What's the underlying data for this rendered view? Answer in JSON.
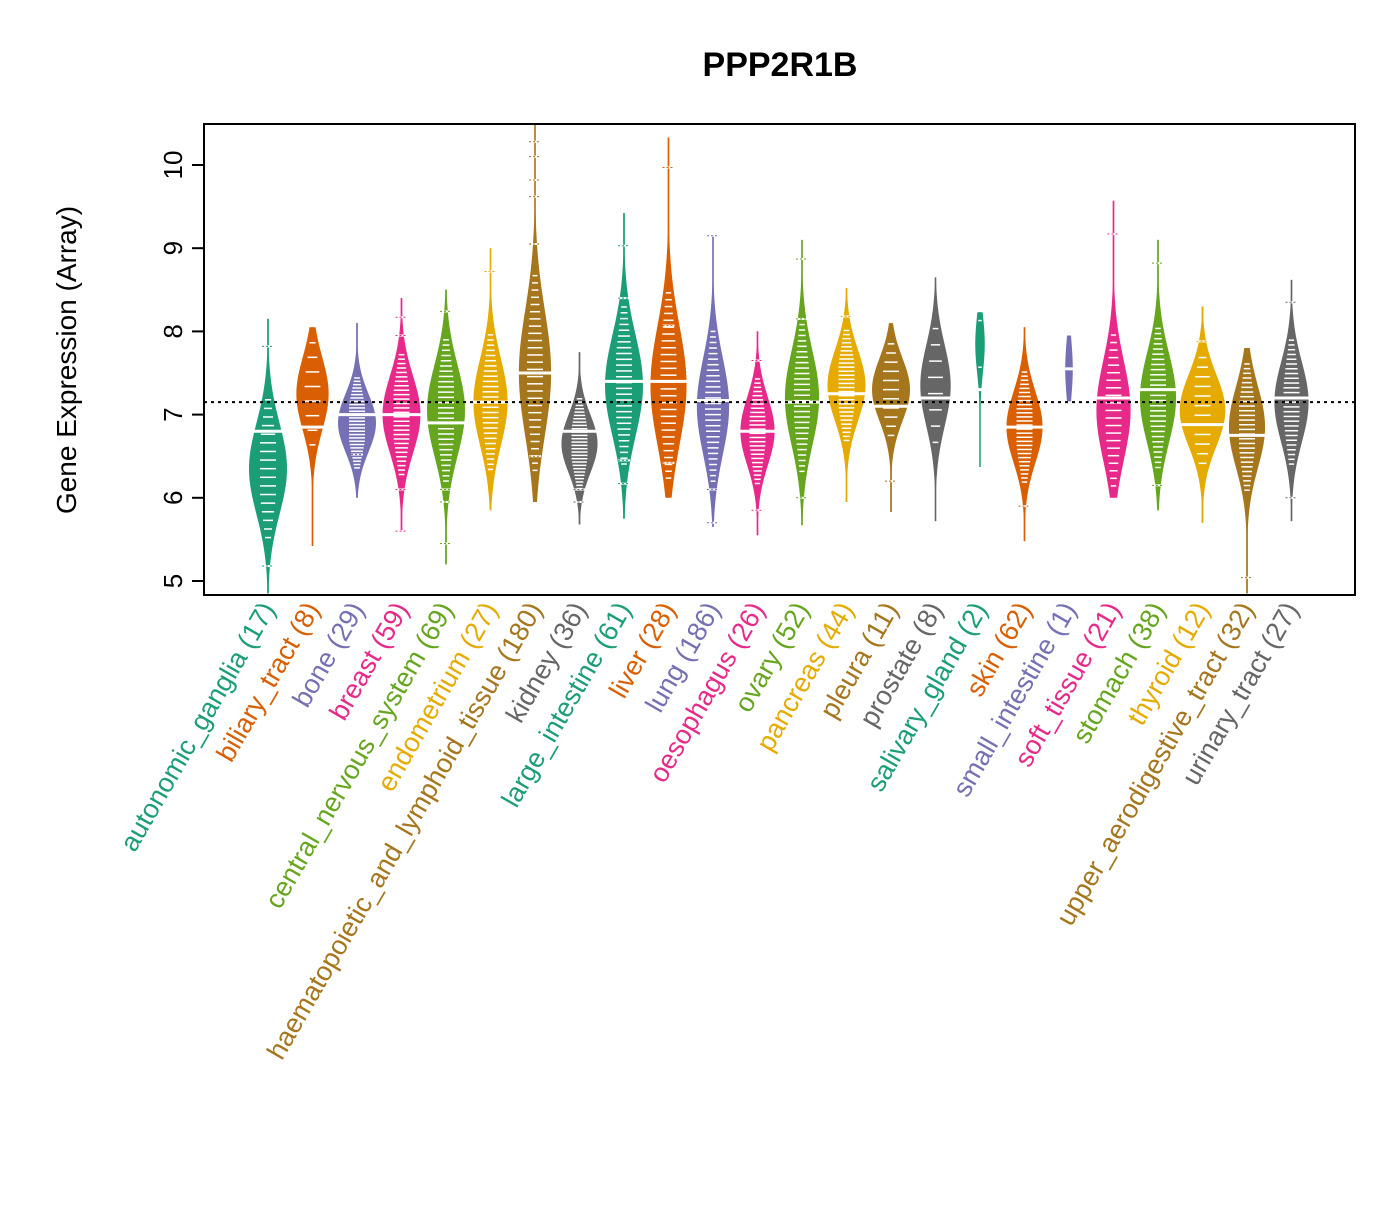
{
  "chart_data": {
    "type": "violin",
    "title": "PPP2R1B",
    "xlabel": "",
    "ylabel": "Gene Expression (Array)",
    "ylim": [
      4.85,
      10.5
    ],
    "yticks": [
      5,
      6,
      7,
      8,
      9,
      10
    ],
    "reference_line": 7.15,
    "grid": false,
    "legend": "none",
    "categories": [
      {
        "name": "autonomic_ganglia",
        "n": 17,
        "color": "#1B9E77",
        "min": 4.85,
        "max": 8.15,
        "median": 6.8,
        "mode": 6.35,
        "width": 1.0,
        "outliers": [
          5.18,
          7.82
        ]
      },
      {
        "name": "biliary_tract",
        "n": 8,
        "color": "#D95F02",
        "min": 5.42,
        "max": 8.05,
        "median": 6.85,
        "mode": 7.25,
        "width": 0.85,
        "outliers": []
      },
      {
        "name": "bone",
        "n": 29,
        "color": "#7570B3",
        "min": 6.0,
        "max": 8.1,
        "median": 7.0,
        "mode": 6.9,
        "width": 1.0,
        "outliers": [
          6.52
        ]
      },
      {
        "name": "breast",
        "n": 59,
        "color": "#E7298A",
        "min": 5.6,
        "max": 8.4,
        "median": 7.0,
        "mode": 7.0,
        "width": 1.0,
        "outliers": [
          5.6,
          6.1,
          8.17,
          7.95
        ]
      },
      {
        "name": "central_nervous_system",
        "n": 69,
        "color": "#66A61E",
        "min": 5.2,
        "max": 8.5,
        "median": 6.9,
        "mode": 7.05,
        "width": 1.0,
        "outliers": [
          5.45,
          5.95,
          6.1,
          8.24
        ]
      },
      {
        "name": "endometrium",
        "n": 27,
        "color": "#E6AB02",
        "min": 5.85,
        "max": 9.0,
        "median": 7.15,
        "mode": 7.15,
        "width": 0.9,
        "outliers": [
          8.72
        ]
      },
      {
        "name": "haematopoietic_and_lymphoid_tissue",
        "n": 180,
        "color": "#A6761D",
        "min": 5.95,
        "max": 10.5,
        "median": 7.5,
        "mode": 7.5,
        "width": 0.85,
        "outliers": [
          10.28,
          10.1,
          9.82,
          9.62,
          9.05,
          6.5
        ]
      },
      {
        "name": "kidney",
        "n": 36,
        "color": "#666666",
        "min": 5.68,
        "max": 7.75,
        "median": 6.8,
        "mode": 6.65,
        "width": 0.95,
        "outliers": [
          5.95,
          6.1
        ]
      },
      {
        "name": "large_intestine",
        "n": 61,
        "color": "#1B9E77",
        "min": 5.75,
        "max": 9.42,
        "median": 7.4,
        "mode": 7.35,
        "width": 1.0,
        "outliers": [
          9.03,
          8.4,
          6.45,
          6.17
        ]
      },
      {
        "name": "liver",
        "n": 28,
        "color": "#D95F02",
        "min": 6.0,
        "max": 10.33,
        "median": 7.4,
        "mode": 7.35,
        "width": 0.95,
        "outliers": [
          9.97,
          8.07,
          6.42
        ]
      },
      {
        "name": "lung",
        "n": 186,
        "color": "#7570B3",
        "min": 5.65,
        "max": 9.15,
        "median": 7.17,
        "mode": 7.1,
        "width": 0.85,
        "outliers": [
          9.15,
          5.7,
          6.1
        ]
      },
      {
        "name": "oesophagus",
        "n": 26,
        "color": "#E7298A",
        "min": 5.55,
        "max": 8.0,
        "median": 6.8,
        "mode": 6.8,
        "width": 0.9,
        "outliers": [
          5.85,
          7.65
        ]
      },
      {
        "name": "ovary",
        "n": 52,
        "color": "#66A61E",
        "min": 5.67,
        "max": 9.1,
        "median": 7.15,
        "mode": 7.2,
        "width": 0.9,
        "outliers": [
          8.87,
          8.15,
          6.0
        ]
      },
      {
        "name": "pancreas",
        "n": 44,
        "color": "#E6AB02",
        "min": 5.95,
        "max": 8.52,
        "median": 7.25,
        "mode": 7.35,
        "width": 1.0,
        "outliers": [
          8.18
        ]
      },
      {
        "name": "pleura",
        "n": 11,
        "color": "#A6761D",
        "min": 5.83,
        "max": 8.1,
        "median": 7.1,
        "mode": 7.3,
        "width": 1.0,
        "outliers": [
          6.2
        ]
      },
      {
        "name": "prostate",
        "n": 8,
        "color": "#666666",
        "min": 5.72,
        "max": 8.65,
        "median": 7.2,
        "mode": 7.35,
        "width": 0.8,
        "outliers": []
      },
      {
        "name": "salivary_gland",
        "n": 2,
        "color": "#1B9E77",
        "min": 6.37,
        "max": 8.23,
        "median": 7.3,
        "mode": 7.85,
        "width": 0.25,
        "outliers": []
      },
      {
        "name": "skin",
        "n": 62,
        "color": "#D95F02",
        "min": 5.48,
        "max": 8.05,
        "median": 6.85,
        "mode": 6.85,
        "width": 0.95,
        "outliers": [
          5.9
        ]
      },
      {
        "name": "small_intestine",
        "n": 1,
        "color": "#7570B3",
        "min": 7.16,
        "max": 7.95,
        "median": 7.55,
        "mode": 7.55,
        "width": 0.2,
        "outliers": []
      },
      {
        "name": "soft_tissue",
        "n": 21,
        "color": "#E7298A",
        "min": 6.0,
        "max": 9.57,
        "median": 7.2,
        "mode": 7.05,
        "width": 0.9,
        "outliers": [
          9.17
        ]
      },
      {
        "name": "stomach",
        "n": 38,
        "color": "#66A61E",
        "min": 5.85,
        "max": 9.1,
        "median": 7.3,
        "mode": 7.2,
        "width": 0.95,
        "outliers": [
          8.82,
          6.15
        ]
      },
      {
        "name": "thyroid",
        "n": 12,
        "color": "#E6AB02",
        "min": 5.7,
        "max": 8.3,
        "median": 6.88,
        "mode": 7.05,
        "width": 1.2,
        "outliers": [
          7.88
        ]
      },
      {
        "name": "upper_aerodigestive_tract",
        "n": 32,
        "color": "#A6761D",
        "min": 4.85,
        "max": 7.8,
        "median": 6.75,
        "mode": 6.85,
        "width": 0.95,
        "outliers": [
          5.04
        ]
      },
      {
        "name": "urinary_tract",
        "n": 27,
        "color": "#666666",
        "min": 5.72,
        "max": 8.62,
        "median": 7.2,
        "mode": 7.15,
        "width": 0.9,
        "outliers": [
          8.35,
          6.0
        ]
      }
    ]
  }
}
